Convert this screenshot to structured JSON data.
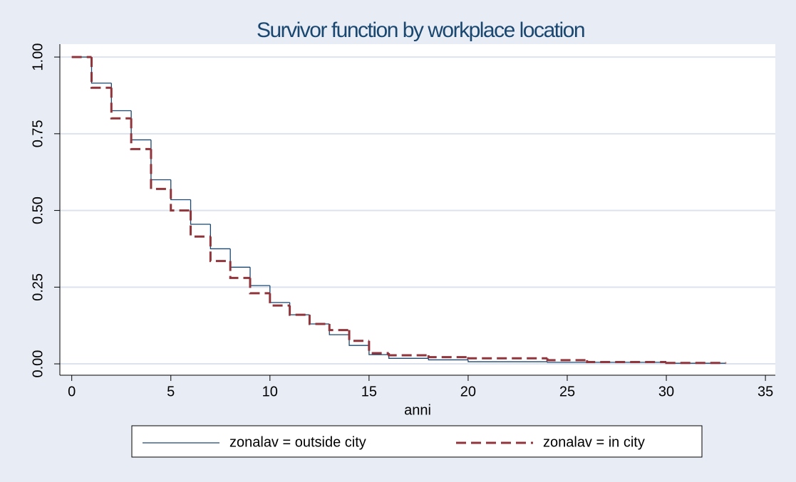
{
  "chart_data": {
    "type": "step",
    "title": "Survivor function by workplace location",
    "x_label": "anni",
    "xlim": [
      -0.6,
      35.5
    ],
    "ylim": [
      -0.037,
      1.042
    ],
    "xticks": [
      0,
      5,
      10,
      15,
      20,
      25,
      30,
      35
    ],
    "yticks": [
      {
        "value": 0,
        "label": "0.00"
      },
      {
        "value": 0.25,
        "label": "0.25"
      },
      {
        "value": 0.5,
        "label": "0.50"
      },
      {
        "value": 0.75,
        "label": "0.75"
      },
      {
        "value": 1,
        "label": "1.00"
      }
    ],
    "grid": true,
    "legend": "bottom",
    "series": [
      {
        "name": "zonalav = outside city",
        "color": "#1a476f",
        "dashed": false,
        "x": [
          0,
          1,
          2,
          3,
          4,
          5,
          6,
          7,
          8,
          9,
          10,
          11,
          12,
          13,
          14,
          15,
          16,
          18,
          20,
          24,
          30,
          33
        ],
        "values": [
          1,
          0.915,
          0.825,
          0.73,
          0.6,
          0.535,
          0.455,
          0.375,
          0.315,
          0.255,
          0.2,
          0.16,
          0.13,
          0.095,
          0.06,
          0.03,
          0.018,
          0.013,
          0.007,
          0.005,
          0.002,
          0.002
        ]
      },
      {
        "name": "zonalav = in city",
        "color": "#90353b",
        "dashed": true,
        "x": [
          0,
          1,
          2,
          3,
          4,
          5,
          6,
          7,
          8,
          9,
          10,
          11,
          12,
          13,
          14,
          15,
          16,
          18,
          20,
          24,
          26,
          30,
          33
        ],
        "values": [
          1,
          0.9,
          0.8,
          0.7,
          0.57,
          0.5,
          0.415,
          0.335,
          0.28,
          0.23,
          0.19,
          0.16,
          0.13,
          0.11,
          0.075,
          0.035,
          0.028,
          0.022,
          0.018,
          0.012,
          0.006,
          0.003,
          0.002
        ]
      }
    ]
  }
}
